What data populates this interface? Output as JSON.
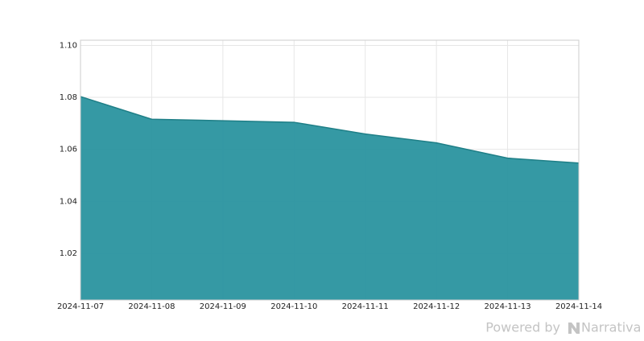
{
  "chart_data": {
    "type": "area",
    "x": [
      "2024-11-07",
      "2024-11-08",
      "2024-11-09",
      "2024-11-10",
      "2024-11-11",
      "2024-11-12",
      "2024-11-13",
      "2024-11-14"
    ],
    "series": [
      {
        "color": "#2a939f",
        "values": [
          1.0803,
          1.0716,
          1.071,
          1.0704,
          1.0659,
          1.0625,
          1.0566,
          1.0547
        ]
      }
    ],
    "ylim": [
      1.002,
      1.102
    ],
    "yticks": [
      1.02,
      1.04,
      1.06,
      1.08,
      {
        "value": 1.1,
        "label": "1.10"
      }
    ],
    "grid": true
  },
  "footer": {
    "powered_by": "Powered by",
    "brand": "Narrativa"
  }
}
